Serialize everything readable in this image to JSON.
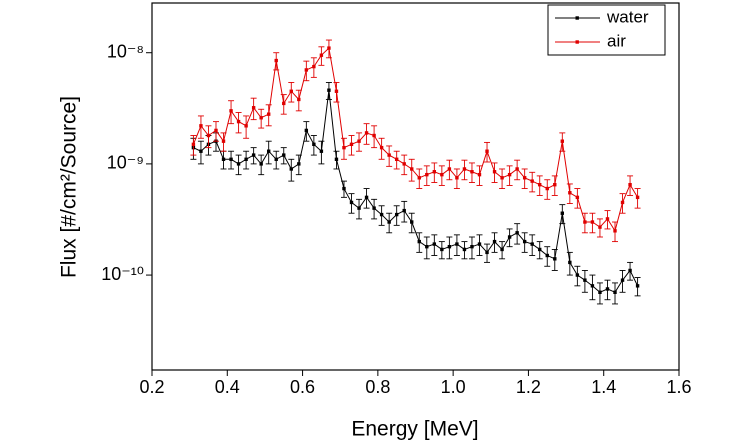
{
  "chart_data": {
    "type": "line",
    "x_label": "Energy [MeV]",
    "y_label": "Flux [#/cm²/Source]",
    "log_y": true,
    "legend_position": "upper right",
    "xlim": [
      0.2,
      1.6
    ],
    "xticks": [
      0.2,
      0.4,
      0.6,
      0.8,
      {
        "value": 1,
        "label": "1.0"
      },
      1.2,
      1.4,
      1.6
    ],
    "ylim": [
      1.4e-11,
      2.8e-08
    ],
    "yticks": [
      {
        "value": 1e-10,
        "label": "10⁻¹⁰"
      },
      {
        "value": 1e-09,
        "label": "10⁻⁹"
      },
      {
        "value": 1e-08,
        "label": "10⁻⁸"
      }
    ],
    "x": [
      0.31,
      0.33,
      0.35,
      0.37,
      0.39,
      0.41,
      0.43,
      0.45,
      0.47,
      0.49,
      0.51,
      0.53,
      0.55,
      0.57,
      0.59,
      0.61,
      0.63,
      0.65,
      0.67,
      0.69,
      0.71,
      0.73,
      0.75,
      0.77,
      0.79,
      0.81,
      0.83,
      0.85,
      0.87,
      0.89,
      0.91,
      0.93,
      0.95,
      0.97,
      0.99,
      1.01,
      1.03,
      1.05,
      1.07,
      1.09,
      1.11,
      1.13,
      1.15,
      1.17,
      1.19,
      1.21,
      1.23,
      1.25,
      1.27,
      1.29,
      1.31,
      1.33,
      1.35,
      1.37,
      1.39,
      1.41,
      1.43,
      1.45,
      1.47,
      1.49
    ],
    "series": [
      {
        "name": "water",
        "color": "#000000",
        "values": [
          1.4e-09,
          1.3e-09,
          1.5e-09,
          1.6e-09,
          1.1e-09,
          1.1e-09,
          1e-09,
          1.1e-09,
          1.2e-09,
          1e-09,
          1.3e-09,
          1.1e-09,
          1.2e-09,
          9e-10,
          1e-09,
          2e-09,
          1.5e-09,
          1.3e-09,
          4.6e-09,
          1.1e-09,
          6e-10,
          4.5e-10,
          4e-10,
          5e-10,
          4e-10,
          3.5e-10,
          3e-10,
          3.5e-10,
          3.8e-10,
          3e-10,
          2e-10,
          1.8e-10,
          1.9e-10,
          1.7e-10,
          1.8e-10,
          1.9e-10,
          1.7e-10,
          1.8e-10,
          1.9e-10,
          1.6e-10,
          2e-10,
          1.7e-10,
          2.2e-10,
          2.4e-10,
          2e-10,
          1.9e-10,
          1.7e-10,
          1.5e-10,
          1.4e-10,
          3.6e-10,
          1.3e-10,
          1e-10,
          9e-11,
          8e-11,
          7e-11,
          7.5e-11,
          7e-11,
          9e-11,
          1.1e-10,
          8e-11
        ],
        "errors": [
          3e-10,
          3e-10,
          3e-10,
          3e-10,
          2e-10,
          2e-10,
          2e-10,
          2e-10,
          2e-10,
          2e-10,
          3e-10,
          2e-10,
          2e-10,
          2e-10,
          2e-10,
          4e-10,
          3e-10,
          3e-10,
          8e-10,
          2e-10,
          1e-10,
          9e-11,
          8e-11,
          1e-10,
          8e-11,
          7e-11,
          6e-11,
          7e-11,
          8e-11,
          6e-11,
          4e-11,
          4e-11,
          4e-11,
          3e-11,
          4e-11,
          4e-11,
          3e-11,
          4e-11,
          4e-11,
          3e-11,
          4e-11,
          3e-11,
          4e-11,
          5e-11,
          4e-11,
          4e-11,
          3e-11,
          3e-11,
          3e-11,
          7e-11,
          3e-11,
          2e-11,
          2e-11,
          2e-11,
          1.5e-11,
          1.5e-11,
          1.5e-11,
          2e-11,
          2e-11,
          1.5e-11
        ]
      },
      {
        "name": "air",
        "color": "#e00000",
        "values": [
          1.5e-09,
          2.2e-09,
          1.8e-09,
          2e-09,
          1.6e-09,
          3e-09,
          2.4e-09,
          2.2e-09,
          3.2e-09,
          2.6e-09,
          2.8e-09,
          8.5e-09,
          3.5e-09,
          4.5e-09,
          3.8e-09,
          7e-09,
          7.5e-09,
          9.5e-09,
          1.1e-08,
          4.5e-09,
          1.4e-09,
          1.5e-09,
          1.6e-09,
          1.9e-09,
          1.8e-09,
          1.4e-09,
          1.2e-09,
          1.1e-09,
          1e-09,
          9e-10,
          7.5e-10,
          8e-10,
          8.5e-10,
          8e-10,
          9e-10,
          7.5e-10,
          9e-10,
          8.5e-10,
          8e-10,
          1.3e-09,
          8.5e-10,
          7.5e-10,
          8e-10,
          9e-10,
          7.5e-10,
          7e-10,
          6.5e-10,
          6e-10,
          6.5e-10,
          1.6e-09,
          5.5e-10,
          5e-10,
          3e-10,
          3e-10,
          2.7e-10,
          3.2e-10,
          2.5e-10,
          4.5e-10,
          6.5e-10,
          5e-10
        ],
        "errors": [
          3e-10,
          5e-10,
          4e-10,
          4e-10,
          3e-10,
          7e-10,
          5e-10,
          5e-10,
          7e-10,
          5e-10,
          6e-10,
          1.5e-09,
          7e-10,
          9e-10,
          8e-10,
          1.4e-09,
          1.5e-09,
          1.8e-09,
          2e-09,
          9e-10,
          3e-10,
          3e-10,
          3e-10,
          4e-10,
          4e-10,
          3e-10,
          2.5e-10,
          2e-10,
          2e-10,
          2e-10,
          1.5e-10,
          1.6e-10,
          1.7e-10,
          1.6e-10,
          1.8e-10,
          1.5e-10,
          1.8e-10,
          1.7e-10,
          1.6e-10,
          2.6e-10,
          1.7e-10,
          1.5e-10,
          1.6e-10,
          1.8e-10,
          1.5e-10,
          1.4e-10,
          1.3e-10,
          1.2e-10,
          1.3e-10,
          3e-10,
          1.1e-10,
          1e-10,
          6e-11,
          6e-11,
          5e-11,
          6e-11,
          5e-11,
          9e-11,
          1.3e-10,
          1e-10
        ]
      }
    ]
  }
}
